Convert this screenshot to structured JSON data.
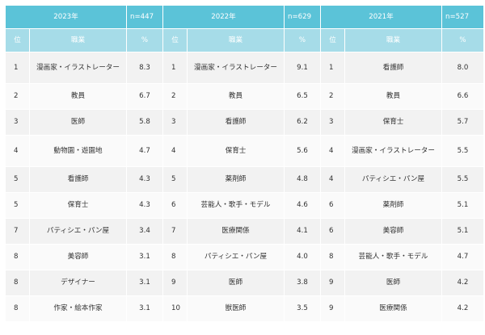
{
  "years": [
    {
      "label": "2023年",
      "n": "n=447"
    },
    {
      "label": "2022年",
      "n": "n=629"
    },
    {
      "label": "2021年",
      "n": "n=527"
    }
  ],
  "columns": {
    "rank": "位",
    "job": "職業",
    "pct": "%"
  },
  "rows": [
    [
      {
        "r": "1",
        "j": "漫画家・イラストレーター",
        "p": "8.3"
      },
      {
        "r": "1",
        "j": "漫画家・イラストレーター",
        "p": "9.1"
      },
      {
        "r": "1",
        "j": "看護師",
        "p": "8.0"
      }
    ],
    [
      {
        "r": "2",
        "j": "教員",
        "p": "6.7"
      },
      {
        "r": "2",
        "j": "教員",
        "p": "6.5"
      },
      {
        "r": "2",
        "j": "教員",
        "p": "6.6"
      }
    ],
    [
      {
        "r": "3",
        "j": "医師",
        "p": "5.8"
      },
      {
        "r": "3",
        "j": "看護師",
        "p": "6.2"
      },
      {
        "r": "3",
        "j": "保育士",
        "p": "5.7"
      }
    ],
    [
      {
        "r": "4",
        "j": "動物園・遊園地",
        "p": "4.7"
      },
      {
        "r": "4",
        "j": "保育士",
        "p": "5.6"
      },
      {
        "r": "4",
        "j": "漫画家・イラストレーター",
        "p": "5.5"
      }
    ],
    [
      {
        "r": "5",
        "j": "看護師",
        "p": "4.3"
      },
      {
        "r": "5",
        "j": "薬剤師",
        "p": "4.8"
      },
      {
        "r": "4",
        "j": "パティシエ・パン屋",
        "p": "5.5"
      }
    ],
    [
      {
        "r": "5",
        "j": "保育士",
        "p": "4.3"
      },
      {
        "r": "6",
        "j": "芸能人・歌手・モデル",
        "p": "4.6"
      },
      {
        "r": "6",
        "j": "薬剤師",
        "p": "5.1"
      }
    ],
    [
      {
        "r": "7",
        "j": "パティシエ・パン屋",
        "p": "3.4"
      },
      {
        "r": "7",
        "j": "医療関係",
        "p": "4.1"
      },
      {
        "r": "6",
        "j": "美容師",
        "p": "5.1"
      }
    ],
    [
      {
        "r": "8",
        "j": "美容師",
        "p": "3.1"
      },
      {
        "r": "8",
        "j": "パティシエ・パン屋",
        "p": "4.0"
      },
      {
        "r": "8",
        "j": "芸能人・歌手・モデル",
        "p": "4.7"
      }
    ],
    [
      {
        "r": "8",
        "j": "デザイナー",
        "p": "3.1"
      },
      {
        "r": "9",
        "j": "医師",
        "p": "3.8"
      },
      {
        "r": "9",
        "j": "医師",
        "p": "4.2"
      }
    ],
    [
      {
        "r": "8",
        "j": "作家・絵本作家",
        "p": "3.1"
      },
      {
        "r": "10",
        "j": "獣医師",
        "p": "3.5"
      },
      {
        "r": "9",
        "j": "医療関係",
        "p": "4.2"
      }
    ]
  ]
}
